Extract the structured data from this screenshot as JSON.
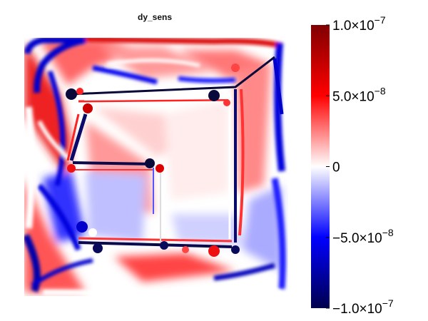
{
  "chart_data": {
    "type": "heatmap",
    "title": "dy_sens",
    "xlabel": "",
    "ylabel": "",
    "axes_visible": false,
    "colormap": {
      "name": "seismic",
      "stops": [
        "#00004d",
        "#0000ff",
        "#ffffff",
        "#ff0000",
        "#800000"
      ]
    },
    "colorbar": {
      "range": [
        -1e-07,
        1e-07
      ],
      "ticks": [
        {
          "value": 1e-07,
          "mantissa": "1.0×10",
          "exponent": "−7"
        },
        {
          "value": 5e-08,
          "mantissa": "5.0×10",
          "exponent": "−8"
        },
        {
          "value": 0,
          "mantissa": "0",
          "exponent": ""
        },
        {
          "value": -5e-08,
          "mantissa": "−5.0×10",
          "exponent": "−8"
        },
        {
          "value": -1e-07,
          "mantissa": "−1.0×10",
          "exponent": "−7"
        }
      ]
    }
  }
}
